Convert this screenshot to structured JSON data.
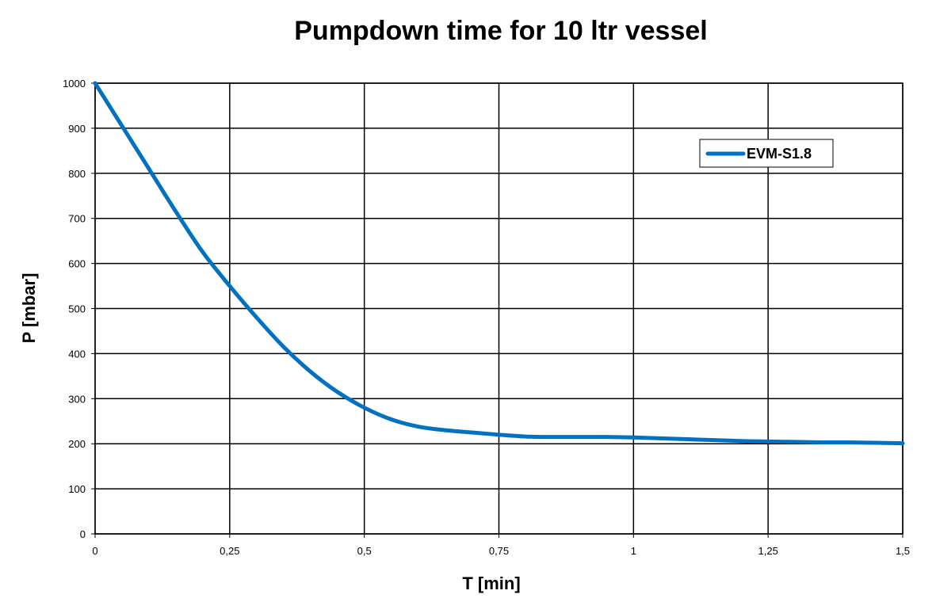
{
  "chart_data": {
    "type": "line",
    "title": "Pumpdown time for 10 ltr vessel",
    "xlabel": "T [min]",
    "ylabel": "P [mbar]",
    "xlim": [
      0,
      1.5
    ],
    "ylim": [
      0,
      1000
    ],
    "x_ticks": [
      0,
      0.25,
      0.5,
      0.75,
      1,
      1.25,
      1.5
    ],
    "x_tick_labels": [
      "0",
      "0,25",
      "0,5",
      "0,75",
      "1",
      "1,25",
      "1,5"
    ],
    "y_ticks": [
      0,
      100,
      200,
      300,
      400,
      500,
      600,
      700,
      800,
      900,
      1000
    ],
    "y_tick_labels": [
      "0",
      "100",
      "200",
      "300",
      "400",
      "500",
      "600",
      "700",
      "800",
      "900",
      "1000"
    ],
    "grid": true,
    "legend_position": "top-right",
    "series": [
      {
        "name": "EVM-S1.8",
        "color": "#0070C0",
        "x": [
          0,
          0.05,
          0.1,
          0.15,
          0.2,
          0.25,
          0.3,
          0.35,
          0.4,
          0.45,
          0.5,
          0.55,
          0.6,
          0.65,
          0.7,
          0.75,
          0.8,
          0.85,
          0.9,
          0.95,
          1.0,
          1.05,
          1.1,
          1.15,
          1.2,
          1.25,
          1.3,
          1.35,
          1.4,
          1.45,
          1.5
        ],
        "y": [
          1000,
          905,
          810,
          715,
          625,
          550,
          480,
          415,
          360,
          315,
          280,
          254,
          238,
          230,
          225,
          220,
          216,
          215,
          215,
          215,
          214,
          212,
          210,
          208,
          206,
          205,
          204,
          203,
          203,
          202,
          201
        ]
      }
    ]
  }
}
